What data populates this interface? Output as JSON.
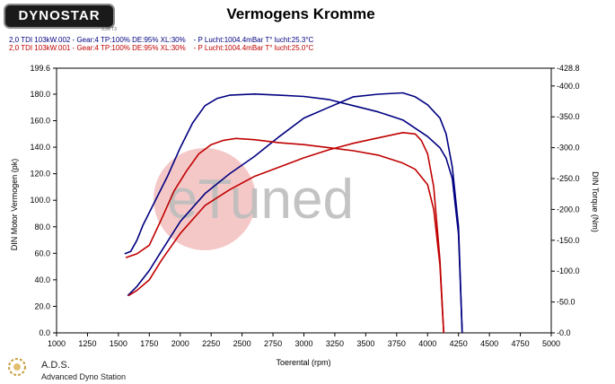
{
  "header": {
    "logo_text": "DYNOSTAR",
    "logo_sub": "3.26 T3",
    "title": "Vermogens Kromme",
    "runs": [
      {
        "label": "2,0 TDI 103kW.002 - Gear:4 TP:100% DE:95% XL:30%",
        "conditions": "- P Lucht:1004.4mBar T° lucht:25.3°C",
        "color": "#000080"
      },
      {
        "label": "2,0 TDI 103kW.001 - Gear:4 TP:100% DE:95% XL:30%",
        "conditions": "- P Lucht:1004.4mBar T° lucht:25.0°C",
        "color": "#c00000"
      }
    ]
  },
  "watermark": "eTuned",
  "footer": {
    "name": "A.D.S.",
    "description": "Advanced Dyno Station"
  },
  "chart_data": {
    "type": "line",
    "xlabel": "Toerental (rpm)",
    "ylabel": "DIN Motor Vermogen (pk)",
    "y2label": "DIN Torque (Nm)",
    "xlim": [
      1000,
      5000
    ],
    "ylim": [
      0,
      199.6
    ],
    "y2lim": [
      0,
      428.8
    ],
    "x_ticks": [
      1000,
      1250,
      1500,
      1750,
      2000,
      2250,
      2500,
      2750,
      3000,
      3250,
      3500,
      3750,
      4000,
      4250,
      4500,
      4750,
      5000
    ],
    "y_ticks": [
      "0.0",
      "20.0",
      "40.0",
      "60.0",
      "80.0",
      "100.0",
      "120.0",
      "140.0",
      "160.0",
      "180.0",
      "199.6"
    ],
    "y2_ticks": [
      "-0.0",
      "-50.0",
      "-100.0",
      "-150.0",
      "-200.0",
      "-250.0",
      "-300.0",
      "-350.0",
      "-400.0",
      "-428.8"
    ],
    "grid": false,
    "series": [
      {
        "name": "2,0 TDI 103kW.002",
        "kind": "power",
        "axis": "left",
        "color": "#000080",
        "x": [
          1575,
          1650,
          1750,
          1850,
          2000,
          2200,
          2400,
          2600,
          2800,
          3000,
          3200,
          3400,
          3600,
          3800,
          3900,
          4000,
          4100,
          4150,
          4200,
          4250,
          4280
        ],
        "y": [
          28,
          35,
          47,
          62,
          84,
          105,
          120,
          133,
          148,
          162,
          170,
          178,
          180,
          181,
          178,
          172,
          162,
          150,
          125,
          80,
          0
        ]
      },
      {
        "name": "2,0 TDI 103kW.002",
        "kind": "torque",
        "axis": "right",
        "color": "#000080",
        "x": [
          1550,
          1600,
          1650,
          1700,
          1800,
          1900,
          2000,
          2100,
          2200,
          2300,
          2400,
          2600,
          2800,
          3000,
          3200,
          3400,
          3600,
          3800,
          4000,
          4100,
          4150,
          4200,
          4250,
          4280
        ],
        "y": [
          128,
          132,
          150,
          175,
          215,
          255,
          300,
          340,
          368,
          380,
          385,
          387,
          385,
          383,
          378,
          368,
          358,
          345,
          318,
          300,
          283,
          250,
          160,
          0
        ]
      },
      {
        "name": "2,0 TDI 103kW.001",
        "kind": "power",
        "axis": "left",
        "color": "#c00000",
        "x": [
          1580,
          1650,
          1750,
          1850,
          2000,
          2200,
          2400,
          2600,
          2800,
          3000,
          3200,
          3400,
          3600,
          3800,
          3900,
          3950,
          4000,
          4050,
          4100,
          4130
        ],
        "y": [
          28,
          32,
          40,
          55,
          75,
          96,
          108,
          118,
          125,
          132,
          138,
          143,
          147,
          151,
          150,
          145,
          135,
          110,
          55,
          0
        ]
      },
      {
        "name": "2,0 TDI 103kW.001",
        "kind": "torque",
        "axis": "right",
        "color": "#c00000",
        "x": [
          1560,
          1650,
          1750,
          1850,
          1950,
          2050,
          2150,
          2250,
          2350,
          2450,
          2600,
          2800,
          3000,
          3200,
          3400,
          3600,
          3800,
          3900,
          4000,
          4050,
          4100,
          4130
        ],
        "y": [
          122,
          128,
          142,
          185,
          230,
          262,
          290,
          305,
          312,
          315,
          313,
          308,
          305,
          300,
          295,
          288,
          275,
          265,
          240,
          200,
          110,
          0
        ]
      }
    ]
  }
}
